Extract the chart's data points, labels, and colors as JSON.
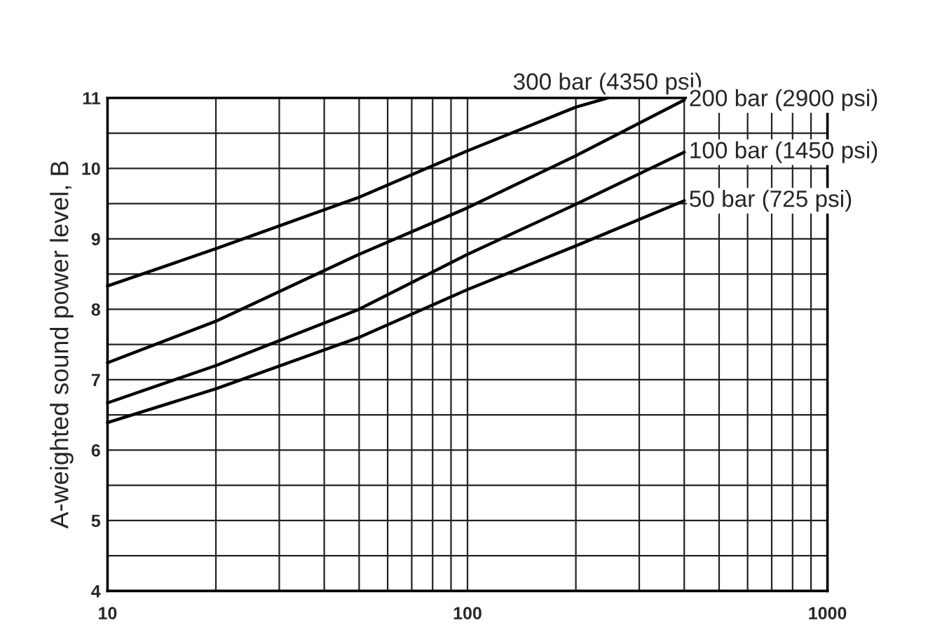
{
  "chart_data": {
    "type": "line",
    "ylabel": "A-weighted sound power level, B",
    "log": "x",
    "xlim": [
      10,
      1000
    ],
    "ylim": [
      4,
      11
    ],
    "xticks": [
      10,
      {
        "value": 20,
        "label": null
      },
      {
        "value": 30,
        "label": null
      },
      {
        "value": 40,
        "label": null
      },
      {
        "value": 50,
        "label": null
      },
      {
        "value": 60,
        "label": null
      },
      {
        "value": 70,
        "label": null
      },
      {
        "value": 80,
        "label": null
      },
      {
        "value": 90,
        "label": null
      },
      100,
      {
        "value": 200,
        "label": null
      },
      {
        "value": 300,
        "label": null
      },
      {
        "value": 400,
        "label": null
      },
      {
        "value": 500,
        "label": null
      },
      {
        "value": 600,
        "label": null
      },
      {
        "value": 700,
        "label": null
      },
      {
        "value": 800,
        "label": null
      },
      {
        "value": 900,
        "label": null
      },
      1000
    ],
    "yticks": [
      4,
      {
        "value": 4.5,
        "label": null
      },
      5,
      {
        "value": 5.5,
        "label": null
      },
      6,
      {
        "value": 6.5,
        "label": null
      },
      7,
      {
        "value": 7.5,
        "label": null
      },
      8,
      {
        "value": 8.5,
        "label": null
      },
      9,
      {
        "value": 9.5,
        "label": null
      },
      10,
      {
        "value": 10.5,
        "label": null
      },
      11
    ],
    "grid": true,
    "legend": false,
    "marker": "none",
    "line_style": "solid",
    "series": [
      {
        "name": "300 bar (4350 psi)",
        "color": "#000000",
        "x": [
          10,
          20,
          50,
          100,
          200,
          245
        ],
        "values": [
          8.33,
          8.86,
          9.59,
          10.25,
          10.87,
          11
        ]
      },
      {
        "name": "200 bar (2900 psi)",
        "color": "#000000",
        "x": [
          10,
          20,
          50,
          100,
          200,
          400
        ],
        "values": [
          7.24,
          7.83,
          8.78,
          9.44,
          10.18,
          10.97
        ]
      },
      {
        "name": "100 bar (1450 psi)",
        "color": "#000000",
        "x": [
          10,
          20,
          50,
          100,
          200,
          400
        ],
        "values": [
          6.67,
          7.2,
          8.0,
          8.78,
          9.49,
          10.23
        ]
      },
      {
        "name": "50 bar (725 psi)",
        "color": "#000000",
        "x": [
          10,
          20,
          50,
          100,
          200,
          400
        ],
        "values": [
          6.39,
          6.87,
          7.6,
          8.28,
          8.9,
          9.54
        ]
      }
    ]
  }
}
